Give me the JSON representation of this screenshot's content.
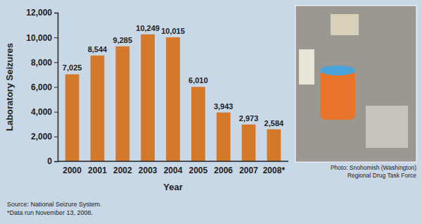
{
  "chart_data": {
    "type": "bar",
    "x_label": "Year",
    "y_label": "Laboratory Seizures",
    "categories": [
      "2000",
      "2001",
      "2002",
      "2003",
      "2004",
      "2005",
      "2006",
      "2007",
      "2008*"
    ],
    "values": [
      7025,
      8544,
      9285,
      10249,
      10015,
      6010,
      3943,
      2973,
      2584
    ],
    "value_labels": [
      "7,025",
      "8,544",
      "9,285",
      "10,249",
      "10,015",
      "6,010",
      "3,943",
      "2,973",
      "2,584"
    ],
    "color": "#d4782c",
    "ylim": [
      0,
      12000
    ],
    "yticks": [
      0,
      {
        "value": 2000,
        "label": "2,000"
      },
      {
        "value": 4000,
        "label": "4,000"
      },
      {
        "value": 6000,
        "label": "6,000"
      },
      {
        "value": 8000,
        "label": "8,000"
      },
      {
        "value": 10000,
        "label": "10,000"
      },
      {
        "value": 12000,
        "label": "12,000"
      }
    ],
    "grid": false,
    "data_labels": true,
    "annotations": [
      "Source: National Seizure System.",
      "*Data run November 13, 2008.",
      "Photo: Snohomish (Washington)",
      "Regional Drug Task Force"
    ]
  }
}
